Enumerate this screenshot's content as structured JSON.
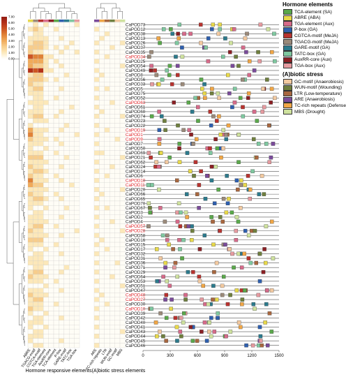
{
  "genes": [
    "CaPOD73",
    "CaPOD12",
    "CaPOD38",
    "CaPOD13",
    "CaPOD26",
    "CaPOD37",
    "CaPOD35",
    "CaPOD34",
    "CaPOD25",
    "CaPOD54",
    "CaPOD49",
    "CaPOD8",
    "CaPOD56",
    "CaPOD33",
    "CaPOD5",
    "CaPOD75",
    "CaPOD52",
    "CaPOD63",
    "CaPOD61",
    "CaPOD60",
    "CaPOD74",
    "CaPOD23",
    "CaPOD22",
    "CaPOD19",
    "CaPOD1",
    "CaPOD9",
    "CaPOD7",
    "CaPOD50",
    "CaPOD69",
    "CaPOD21",
    "CaPOD62",
    "CaPOD24",
    "CaPOD14",
    "CaPOD6",
    "CaPOD18",
    "CaPOD11",
    "CaPOD20",
    "CaPOD66",
    "CaPOD65",
    "CaPOD70",
    "CaPOD67",
    "CaPOD3",
    "CaPOD2",
    "CaPOD4",
    "CaPOD57",
    "CaPOD28",
    "CaPOD58",
    "CaPOD16",
    "CaPOD15",
    "CaPOD17",
    "CaPOD32",
    "CaPOD31",
    "CaPOD36",
    "CaPOD71",
    "CaPOD29",
    "CaPOD64",
    "CaPOD53",
    "CaPOD51",
    "CaPOD47",
    "CaPOD48",
    "CaPOD27",
    "CaPOD30",
    "CaPOD10",
    "CaPOD39",
    "CaPOD42",
    "CaPOD40",
    "CaPOD41",
    "CaPOD43",
    "CaPOD44",
    "CaPOD45",
    "CaPOD46"
  ],
  "highlighted": [
    "CaPOD34",
    "CaPOD63",
    "CaPOD19",
    "CaPOD1",
    "CaPOD9",
    "CaPOD18",
    "CaPOD11",
    "CaPOD57",
    "CaPOD28",
    "CaPOD48",
    "CaPOD27",
    "CaPOD10"
  ],
  "hormone_columns": [
    "ABRE",
    "TGACG-motif",
    "CGTCA-motif",
    "TGA-element",
    "AuxRR-core",
    "TCA-element",
    "P-box",
    "GARE-motif",
    "TATC-box",
    "TGA-box"
  ],
  "stress_columns": [
    "ARE",
    "TC-rich repeats",
    "LTR",
    "WUN-motif",
    "GC-motif",
    "MBS"
  ],
  "colorbar": {
    "ticks": [
      "7.00",
      "6.00",
      "5.00",
      "4.00",
      "3.00",
      "2.00",
      "1.00",
      "0.00"
    ],
    "min": 0,
    "max": 7
  },
  "axis": {
    "ticks": [
      0,
      300,
      600,
      900,
      1200,
      1500
    ],
    "min": 0,
    "max": 1500
  },
  "hormone_legend": {
    "title": "Hormone elements",
    "items": [
      {
        "label": "TCA-element (SA)",
        "color": "#5aa84b"
      },
      {
        "label": "ABRE (ABA)",
        "color": "#e8d94a"
      },
      {
        "label": "TGA-element (Aux)",
        "color": "#d66b8a"
      },
      {
        "label": "P-box (GA)",
        "color": "#2e5fae"
      },
      {
        "label": "CGTCA-motif (MeJA)",
        "color": "#b8332f"
      },
      {
        "label": "TGACG-motif (MeJA)",
        "color": "#9b8a7a"
      },
      {
        "label": "GARE-motif (GA)",
        "color": "#2c7a8c"
      },
      {
        "label": "TATC-box (GA)",
        "color": "#7fc8a0"
      },
      {
        "label": "AuxRR-core (Aux)",
        "color": "#8b1f24"
      },
      {
        "label": "TGA-box (Aux)",
        "color": "#e59a9f"
      }
    ]
  },
  "stress_legend": {
    "title": "(A)biotic stress",
    "items": [
      {
        "label": "GC-motif (Anaerobiosis)",
        "color": "#f2c9a0"
      },
      {
        "label": "WUN-motif (Wounding)",
        "color": "#6f7f3e"
      },
      {
        "label": "LTR (Low-temperature)",
        "color": "#a8673f"
      },
      {
        "label": "ARE (Anaerobiosis)",
        "color": "#7a4b9a"
      },
      {
        "label": "TC-rich repeats (Defense)",
        "color": "#f0a646"
      },
      {
        "label": "MBS (Drought)",
        "color": "#cfe29e"
      }
    ]
  },
  "group_labels": {
    "hormone": "Hormone responsive elements",
    "stress": "(A)biotic stress elements"
  },
  "heat_hormone": [
    [
      0,
      1,
      0,
      1,
      0,
      0,
      0,
      0,
      0,
      1
    ],
    [
      1,
      2,
      1,
      0,
      0,
      1,
      0,
      0,
      0,
      0
    ],
    [
      0,
      1,
      1,
      0,
      0,
      0,
      0,
      0,
      0,
      0
    ],
    [
      1,
      1,
      1,
      1,
      0,
      0,
      1,
      0,
      0,
      0
    ],
    [
      1,
      2,
      2,
      1,
      0,
      0,
      0,
      0,
      1,
      0
    ],
    [
      2,
      2,
      2,
      1,
      0,
      1,
      0,
      1,
      0,
      0
    ],
    [
      2,
      1,
      1,
      0,
      0,
      0,
      1,
      0,
      0,
      1
    ],
    [
      5,
      4,
      4,
      1,
      1,
      0,
      0,
      0,
      0,
      0
    ],
    [
      3,
      3,
      3,
      1,
      0,
      1,
      0,
      0,
      0,
      0
    ],
    [
      3,
      2,
      2,
      1,
      0,
      0,
      1,
      0,
      0,
      0
    ],
    [
      6,
      5,
      6,
      1,
      1,
      0,
      0,
      0,
      0,
      0
    ],
    [
      1,
      2,
      2,
      0,
      0,
      0,
      0,
      1,
      0,
      0
    ],
    [
      2,
      2,
      2,
      1,
      0,
      1,
      0,
      0,
      0,
      0
    ],
    [
      2,
      1,
      1,
      0,
      0,
      0,
      0,
      0,
      0,
      0
    ],
    [
      1,
      2,
      2,
      0,
      0,
      0,
      1,
      0,
      0,
      0
    ],
    [
      1,
      1,
      1,
      0,
      0,
      0,
      0,
      0,
      0,
      0
    ],
    [
      0,
      1,
      1,
      0,
      0,
      1,
      0,
      0,
      0,
      0
    ],
    [
      1,
      1,
      1,
      1,
      0,
      0,
      0,
      0,
      0,
      0
    ],
    [
      0,
      1,
      1,
      0,
      0,
      0,
      0,
      0,
      1,
      0
    ],
    [
      1,
      1,
      1,
      0,
      0,
      0,
      1,
      0,
      0,
      0
    ],
    [
      1,
      2,
      2,
      0,
      0,
      1,
      0,
      0,
      0,
      0
    ],
    [
      0,
      1,
      1,
      1,
      0,
      0,
      0,
      0,
      0,
      0
    ],
    [
      1,
      0,
      0,
      0,
      0,
      0,
      0,
      1,
      0,
      0
    ],
    [
      3,
      1,
      1,
      1,
      0,
      0,
      1,
      0,
      0,
      0
    ],
    [
      4,
      1,
      1,
      0,
      0,
      0,
      0,
      0,
      0,
      1
    ],
    [
      2,
      1,
      1,
      1,
      0,
      1,
      0,
      0,
      0,
      0
    ],
    [
      1,
      1,
      1,
      0,
      0,
      0,
      1,
      0,
      0,
      0
    ],
    [
      1,
      0,
      0,
      1,
      0,
      0,
      0,
      0,
      0,
      0
    ],
    [
      1,
      1,
      1,
      0,
      0,
      1,
      0,
      0,
      0,
      0
    ],
    [
      2,
      2,
      2,
      0,
      0,
      0,
      0,
      1,
      0,
      0
    ],
    [
      1,
      1,
      1,
      1,
      0,
      0,
      0,
      0,
      0,
      0
    ],
    [
      2,
      1,
      1,
      0,
      0,
      0,
      1,
      0,
      0,
      0
    ],
    [
      1,
      2,
      2,
      1,
      0,
      0,
      0,
      0,
      0,
      0
    ],
    [
      2,
      1,
      1,
      0,
      0,
      1,
      0,
      0,
      0,
      0
    ],
    [
      4,
      1,
      1,
      1,
      0,
      0,
      1,
      0,
      0,
      0
    ],
    [
      3,
      2,
      2,
      0,
      0,
      0,
      0,
      0,
      1,
      0
    ],
    [
      1,
      1,
      1,
      1,
      0,
      0,
      0,
      0,
      0,
      0
    ],
    [
      2,
      1,
      1,
      0,
      0,
      1,
      0,
      0,
      0,
      0
    ],
    [
      1,
      2,
      2,
      1,
      0,
      0,
      1,
      0,
      0,
      0
    ],
    [
      1,
      1,
      1,
      0,
      0,
      0,
      0,
      0,
      0,
      0
    ],
    [
      1,
      0,
      0,
      1,
      0,
      0,
      0,
      1,
      0,
      0
    ],
    [
      0,
      1,
      1,
      0,
      0,
      0,
      0,
      0,
      0,
      0
    ],
    [
      1,
      1,
      1,
      0,
      0,
      0,
      1,
      0,
      0,
      0
    ],
    [
      1,
      1,
      1,
      1,
      0,
      0,
      0,
      0,
      0,
      0
    ],
    [
      1,
      2,
      2,
      0,
      0,
      1,
      0,
      0,
      0,
      0
    ],
    [
      2,
      1,
      1,
      0,
      0,
      0,
      0,
      0,
      0,
      1
    ],
    [
      1,
      1,
      1,
      1,
      0,
      0,
      1,
      0,
      0,
      0
    ],
    [
      2,
      2,
      2,
      0,
      0,
      0,
      0,
      0,
      0,
      0
    ],
    [
      1,
      1,
      1,
      0,
      0,
      1,
      0,
      0,
      0,
      0
    ],
    [
      1,
      0,
      0,
      1,
      0,
      0,
      0,
      0,
      0,
      0
    ],
    [
      0,
      1,
      1,
      0,
      0,
      0,
      1,
      0,
      0,
      0
    ],
    [
      1,
      1,
      1,
      0,
      0,
      0,
      0,
      0,
      0,
      0
    ],
    [
      1,
      1,
      1,
      1,
      0,
      0,
      0,
      0,
      0,
      0
    ],
    [
      0,
      1,
      1,
      0,
      0,
      0,
      0,
      1,
      0,
      0
    ],
    [
      1,
      2,
      2,
      0,
      0,
      0,
      1,
      0,
      0,
      0
    ],
    [
      2,
      1,
      1,
      1,
      0,
      0,
      0,
      0,
      0,
      0
    ],
    [
      1,
      1,
      1,
      0,
      0,
      1,
      0,
      0,
      0,
      0
    ],
    [
      0,
      0,
      0,
      1,
      0,
      0,
      0,
      0,
      0,
      0
    ],
    [
      1,
      1,
      1,
      0,
      0,
      0,
      1,
      0,
      0,
      0
    ],
    [
      2,
      1,
      1,
      1,
      0,
      0,
      0,
      0,
      0,
      0
    ],
    [
      1,
      2,
      2,
      0,
      0,
      0,
      0,
      0,
      0,
      0
    ],
    [
      1,
      1,
      1,
      0,
      0,
      1,
      0,
      0,
      0,
      0
    ],
    [
      2,
      1,
      1,
      0,
      0,
      0,
      0,
      0,
      0,
      0
    ],
    [
      1,
      0,
      0,
      1,
      0,
      0,
      0,
      0,
      0,
      0
    ],
    [
      0,
      1,
      1,
      0,
      0,
      0,
      1,
      0,
      0,
      0
    ],
    [
      1,
      1,
      1,
      0,
      0,
      0,
      0,
      0,
      0,
      0
    ],
    [
      1,
      0,
      0,
      1,
      0,
      0,
      0,
      0,
      0,
      0
    ],
    [
      0,
      1,
      1,
      0,
      0,
      0,
      0,
      0,
      0,
      0
    ],
    [
      1,
      1,
      1,
      0,
      0,
      0,
      0,
      0,
      0,
      0
    ],
    [
      1,
      0,
      0,
      0,
      0,
      0,
      1,
      0,
      0,
      0
    ],
    [
      0,
      1,
      1,
      0,
      0,
      0,
      0,
      0,
      0,
      0
    ]
  ],
  "heat_stress": [
    [
      0,
      0,
      0,
      0,
      0,
      0
    ],
    [
      1,
      0,
      0,
      0,
      0,
      0
    ],
    [
      0,
      0,
      1,
      0,
      0,
      0
    ],
    [
      0,
      1,
      0,
      0,
      0,
      0
    ],
    [
      1,
      0,
      0,
      0,
      0,
      1
    ],
    [
      0,
      0,
      0,
      1,
      0,
      0
    ],
    [
      1,
      0,
      0,
      0,
      0,
      0
    ],
    [
      0,
      0,
      1,
      0,
      0,
      0
    ],
    [
      1,
      0,
      0,
      0,
      0,
      0
    ],
    [
      0,
      0,
      0,
      0,
      0,
      1
    ],
    [
      1,
      0,
      0,
      0,
      0,
      0
    ],
    [
      0,
      1,
      0,
      0,
      0,
      0
    ],
    [
      1,
      0,
      0,
      0,
      0,
      0
    ],
    [
      0,
      0,
      0,
      0,
      0,
      0
    ],
    [
      1,
      0,
      1,
      0,
      0,
      0
    ],
    [
      0,
      0,
      0,
      0,
      0,
      0
    ],
    [
      1,
      0,
      0,
      0,
      0,
      0
    ],
    [
      0,
      0,
      0,
      1,
      0,
      0
    ],
    [
      1,
      0,
      0,
      0,
      0,
      0
    ],
    [
      0,
      1,
      0,
      0,
      0,
      0
    ],
    [
      1,
      0,
      0,
      0,
      0,
      1
    ],
    [
      0,
      0,
      0,
      0,
      0,
      0
    ],
    [
      1,
      0,
      0,
      0,
      0,
      0
    ],
    [
      0,
      0,
      1,
      0,
      0,
      0
    ],
    [
      1,
      0,
      0,
      0,
      0,
      0
    ],
    [
      0,
      0,
      0,
      0,
      1,
      0
    ],
    [
      1,
      0,
      0,
      0,
      0,
      0
    ],
    [
      0,
      0,
      0,
      0,
      0,
      0
    ],
    [
      1,
      1,
      0,
      0,
      0,
      0
    ],
    [
      0,
      0,
      0,
      0,
      0,
      1
    ],
    [
      1,
      0,
      0,
      0,
      0,
      0
    ],
    [
      0,
      0,
      0,
      1,
      0,
      0
    ],
    [
      1,
      0,
      0,
      0,
      0,
      0
    ],
    [
      0,
      0,
      1,
      0,
      0,
      0
    ],
    [
      1,
      0,
      0,
      0,
      0,
      0
    ],
    [
      0,
      0,
      0,
      0,
      0,
      0
    ],
    [
      1,
      0,
      0,
      0,
      0,
      1
    ],
    [
      0,
      1,
      0,
      0,
      0,
      0
    ],
    [
      1,
      0,
      0,
      0,
      0,
      0
    ],
    [
      0,
      0,
      0,
      0,
      0,
      0
    ],
    [
      1,
      0,
      1,
      0,
      0,
      0
    ],
    [
      0,
      0,
      0,
      0,
      0,
      0
    ],
    [
      1,
      0,
      0,
      0,
      0,
      0
    ],
    [
      0,
      0,
      0,
      1,
      0,
      0
    ],
    [
      1,
      0,
      0,
      0,
      0,
      0
    ],
    [
      0,
      0,
      0,
      0,
      0,
      1
    ],
    [
      1,
      0,
      0,
      0,
      0,
      0
    ],
    [
      0,
      1,
      0,
      0,
      0,
      0
    ],
    [
      1,
      0,
      0,
      0,
      0,
      0
    ],
    [
      0,
      0,
      1,
      0,
      0,
      0
    ],
    [
      1,
      0,
      0,
      0,
      0,
      0
    ],
    [
      0,
      0,
      0,
      0,
      0,
      0
    ],
    [
      1,
      0,
      0,
      0,
      1,
      0
    ],
    [
      0,
      0,
      0,
      0,
      0,
      0
    ],
    [
      1,
      0,
      0,
      0,
      0,
      0
    ],
    [
      0,
      0,
      0,
      1,
      0,
      0
    ],
    [
      1,
      0,
      0,
      0,
      0,
      0
    ],
    [
      0,
      0,
      0,
      0,
      0,
      1
    ],
    [
      1,
      0,
      0,
      0,
      0,
      0
    ],
    [
      0,
      1,
      0,
      0,
      0,
      0
    ],
    [
      1,
      0,
      0,
      0,
      0,
      0
    ],
    [
      0,
      0,
      1,
      0,
      0,
      0
    ],
    [
      1,
      0,
      0,
      0,
      0,
      0
    ],
    [
      0,
      0,
      0,
      0,
      0,
      0
    ],
    [
      1,
      0,
      0,
      0,
      0,
      0
    ],
    [
      0,
      0,
      0,
      0,
      0,
      0
    ],
    [
      1,
      0,
      0,
      0,
      0,
      0
    ],
    [
      0,
      0,
      0,
      0,
      0,
      1
    ],
    [
      1,
      0,
      0,
      0,
      0,
      0
    ],
    [
      0,
      0,
      0,
      0,
      0,
      0
    ],
    [
      1,
      0,
      0,
      0,
      0,
      0
    ]
  ]
}
